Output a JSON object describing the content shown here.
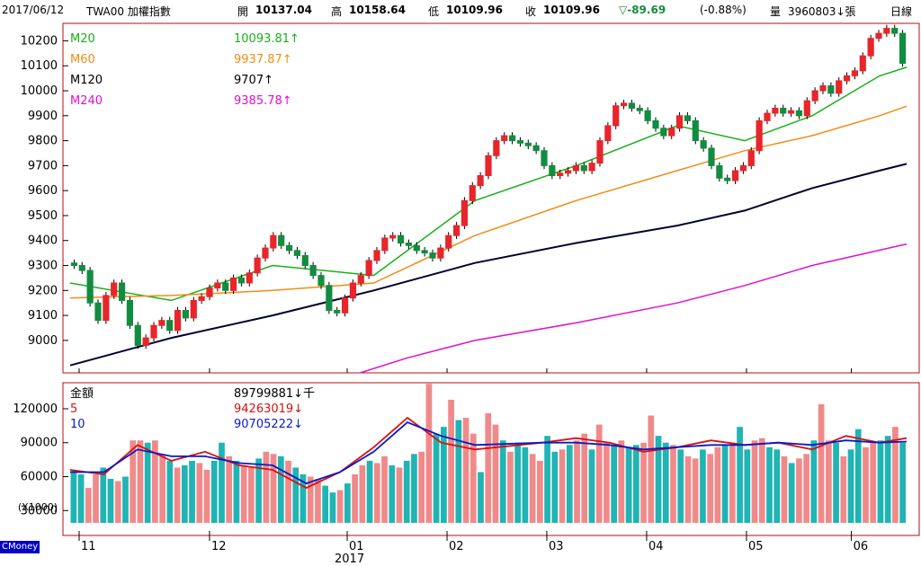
{
  "header": {
    "date": "2017/06/12",
    "symbol": "TWA00 加權指數",
    "open_label": "開",
    "open": "10137.04",
    "high_label": "高",
    "high": "10158.64",
    "low_label": "低",
    "low": "10109.96",
    "close_label": "收",
    "close": "10109.96",
    "change": "▽-89.69",
    "change_pct": "(-0.88%)",
    "volume_label": "量",
    "volume": "3960803↓張",
    "period": "日線"
  },
  "colors": {
    "up": "#e8252a",
    "down": "#128c40",
    "m20": "#18b018",
    "m60": "#f08c14",
    "m120": "#000030",
    "m240": "#e010d0",
    "turnover_up": "#f08a8a",
    "turnover_down": "#20b4b4",
    "avg5": "#d81010",
    "avg10": "#0a1ac8",
    "frame": "#b01010"
  },
  "chart_data": [
    {
      "type": "candlestick",
      "yticks": [
        9000,
        9100,
        9200,
        9300,
        9400,
        9500,
        9600,
        9700,
        9800,
        9900,
        10000,
        10100,
        10200
      ],
      "ylim": [
        8870,
        10270
      ],
      "legend": [
        {
          "name": "M20",
          "value": "10093.81↑"
        },
        {
          "name": "M60",
          "value": "9937.87↑"
        },
        {
          "name": "M120",
          "value": "9707↑"
        },
        {
          "name": "M240",
          "value": "9385.78↑"
        }
      ],
      "x_months": [
        {
          "label": "11",
          "pos": 0
        },
        {
          "label": "12",
          "pos": 0.2066
        },
        {
          "label": "01",
          "pos": 0.4107
        },
        {
          "label": "02",
          "pos": 0.5587
        },
        {
          "label": "03",
          "pos": 0.7066
        },
        {
          "label": "04",
          "pos": 0.8546
        },
        {
          "label": "05",
          "pos": 1.0026
        },
        {
          "label": "06",
          "pos": 1.1581
        }
      ],
      "x_year_label": "2017",
      "closes": [
        9300,
        9280,
        9150,
        9080,
        9180,
        9230,
        9160,
        9060,
        8980,
        9010,
        9060,
        9080,
        9040,
        9120,
        9090,
        9160,
        9175,
        9210,
        9230,
        9200,
        9250,
        9230,
        9270,
        9330,
        9370,
        9420,
        9380,
        9360,
        9340,
        9300,
        9260,
        9220,
        9120,
        9110,
        9170,
        9230,
        9260,
        9320,
        9360,
        9410,
        9420,
        9390,
        9380,
        9360,
        9350,
        9330,
        9370,
        9420,
        9460,
        9560,
        9620,
        9660,
        9740,
        9800,
        9820,
        9800,
        9790,
        9780,
        9760,
        9700,
        9660,
        9670,
        9680,
        9700,
        9680,
        9710,
        9800,
        9860,
        9940,
        9950,
        9930,
        9920,
        9880,
        9850,
        9820,
        9850,
        9900,
        9880,
        9800,
        9770,
        9700,
        9650,
        9640,
        9680,
        9700,
        9760,
        9880,
        9910,
        9930,
        9910,
        9920,
        9900,
        9960,
        10000,
        10020,
        9990,
        10040,
        10060,
        10080,
        10140,
        10210,
        10230,
        10250,
        10230,
        10110
      ],
      "ma": {
        "M20": [
          [
            0,
            9230
          ],
          [
            0.15,
            9160
          ],
          [
            0.3,
            9300
          ],
          [
            0.45,
            9260
          ],
          [
            0.6,
            9560
          ],
          [
            0.75,
            9700
          ],
          [
            0.9,
            9860
          ],
          [
            1.0,
            9800
          ],
          [
            1.1,
            9900
          ],
          [
            1.2,
            10060
          ],
          [
            1.24,
            10094
          ]
        ],
        "M60": [
          [
            0,
            9170
          ],
          [
            0.15,
            9180
          ],
          [
            0.3,
            9200
          ],
          [
            0.45,
            9230
          ],
          [
            0.6,
            9420
          ],
          [
            0.75,
            9560
          ],
          [
            0.9,
            9680
          ],
          [
            1.0,
            9760
          ],
          [
            1.1,
            9820
          ],
          [
            1.2,
            9900
          ],
          [
            1.24,
            9938
          ]
        ],
        "M120": [
          [
            0,
            8900
          ],
          [
            0.15,
            9010
          ],
          [
            0.3,
            9100
          ],
          [
            0.45,
            9200
          ],
          [
            0.6,
            9310
          ],
          [
            0.75,
            9390
          ],
          [
            0.9,
            9460
          ],
          [
            1.0,
            9520
          ],
          [
            1.1,
            9610
          ],
          [
            1.2,
            9680
          ],
          [
            1.24,
            9707
          ]
        ],
        "M240": [
          [
            0.43,
            8870
          ],
          [
            0.5,
            8930
          ],
          [
            0.6,
            9000
          ],
          [
            0.75,
            9070
          ],
          [
            0.9,
            9150
          ],
          [
            1.0,
            9220
          ],
          [
            1.1,
            9300
          ],
          [
            1.24,
            9386
          ]
        ]
      }
    },
    {
      "type": "bar",
      "title": "金額",
      "unit_label": "(X1000)",
      "yticks": [
        30000,
        60000,
        90000,
        120000
      ],
      "ylim": [
        8000,
        143000
      ],
      "legend": [
        {
          "name": "金額",
          "value": "89799881↓千"
        },
        {
          "name": "5",
          "value": "94263019↓"
        },
        {
          "name": "10",
          "value": "90705222↓"
        }
      ],
      "values": [
        65000,
        62000,
        50000,
        62000,
        68000,
        58000,
        56000,
        60000,
        92000,
        92000,
        90000,
        92000,
        80000,
        74000,
        68000,
        70000,
        74000,
        72000,
        66000,
        74000,
        90000,
        78000,
        74000,
        70000,
        68000,
        76000,
        82000,
        80000,
        78000,
        74000,
        68000,
        62000,
        60000,
        58000,
        52000,
        46000,
        48000,
        54000,
        62000,
        70000,
        74000,
        72000,
        78000,
        70000,
        68000,
        74000,
        80000,
        82000,
        142000,
        98000,
        104000,
        128000,
        110000,
        112000,
        98000,
        64000,
        116000,
        106000,
        92000,
        82000,
        90000,
        86000,
        80000,
        74000,
        96000,
        82000,
        84000,
        88000,
        92000,
        98000,
        84000,
        106000,
        90000,
        88000,
        92000,
        86000,
        88000,
        90000,
        114000,
        96000,
        90000,
        88000,
        84000,
        78000,
        76000,
        84000,
        80000,
        86000,
        88000,
        90000,
        104000,
        84000,
        92000,
        94000,
        86000,
        84000,
        78000,
        72000,
        76000,
        80000,
        92000,
        124000,
        92000,
        90000,
        78000,
        84000,
        102000,
        86000,
        90000,
        92000,
        96000,
        104000,
        90000
      ],
      "avg5": [
        [
          0,
          66000
        ],
        [
          0.05,
          62000
        ],
        [
          0.1,
          88000
        ],
        [
          0.15,
          74000
        ],
        [
          0.2,
          82000
        ],
        [
          0.25,
          70000
        ],
        [
          0.3,
          66000
        ],
        [
          0.35,
          50000
        ],
        [
          0.4,
          64000
        ],
        [
          0.45,
          86000
        ],
        [
          0.5,
          112000
        ],
        [
          0.55,
          90000
        ],
        [
          0.6,
          84000
        ],
        [
          0.7,
          90000
        ],
        [
          0.75,
          94000
        ],
        [
          0.8,
          90000
        ],
        [
          0.85,
          82000
        ],
        [
          0.9,
          86000
        ],
        [
          0.95,
          92000
        ],
        [
          1.0,
          88000
        ],
        [
          1.05,
          90000
        ],
        [
          1.1,
          84000
        ],
        [
          1.15,
          96000
        ],
        [
          1.2,
          90000
        ],
        [
          1.24,
          94000
        ]
      ],
      "avg10": [
        [
          0,
          64000
        ],
        [
          0.05,
          64000
        ],
        [
          0.1,
          84000
        ],
        [
          0.15,
          78000
        ],
        [
          0.2,
          78000
        ],
        [
          0.25,
          72000
        ],
        [
          0.3,
          70000
        ],
        [
          0.35,
          54000
        ],
        [
          0.4,
          64000
        ],
        [
          0.45,
          82000
        ],
        [
          0.5,
          108000
        ],
        [
          0.55,
          96000
        ],
        [
          0.6,
          88000
        ],
        [
          0.7,
          90000
        ],
        [
          0.75,
          90000
        ],
        [
          0.8,
          88000
        ],
        [
          0.85,
          84000
        ],
        [
          0.9,
          86000
        ],
        [
          0.95,
          88000
        ],
        [
          1.0,
          88000
        ],
        [
          1.05,
          90000
        ],
        [
          1.1,
          88000
        ],
        [
          1.15,
          92000
        ],
        [
          1.2,
          90000
        ],
        [
          1.24,
          91000
        ]
      ]
    }
  ],
  "brand": "CMoney"
}
